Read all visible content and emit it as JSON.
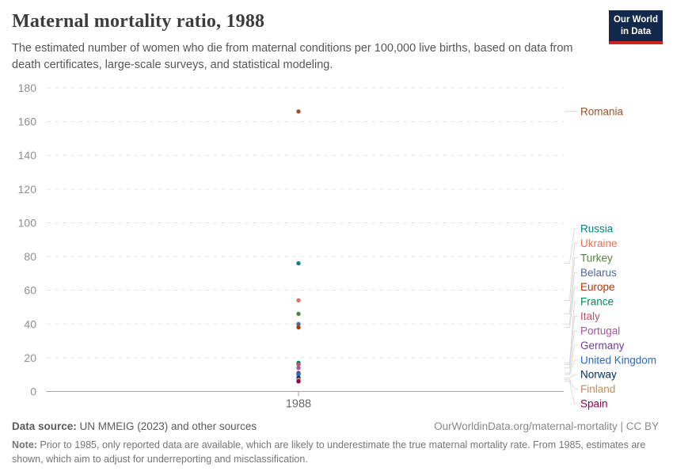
{
  "header": {
    "title": "Maternal mortality ratio, 1988",
    "subtitle": "The estimated number of women who die from maternal conditions per 100,000 live births, based on data from death certificates, large-scale surveys, and statistical modeling.",
    "logo_line1": "Our World",
    "logo_line2": "in Data"
  },
  "chart_data": {
    "type": "scatter",
    "title": "Maternal mortality ratio, 1988",
    "x": [
      1988
    ],
    "x_tick_label": "1988",
    "ylabel": "",
    "ylim": [
      0,
      180
    ],
    "yticks": [
      0,
      20,
      40,
      60,
      80,
      100,
      120,
      140,
      160,
      180
    ],
    "grid": "horizontal-dashed",
    "legend_position": "right",
    "accent_colors": {
      "gridline": "#e3e3e3",
      "axis": "#a1a1a1",
      "connector": "#d9d9d9",
      "tick_text": "#8f8f8f",
      "x_tick_text": "#666666"
    },
    "series": [
      {
        "name": "Romania",
        "value": 166,
        "color": "#9A5129"
      },
      {
        "name": "Russia",
        "value": 76,
        "color": "#00847E"
      },
      {
        "name": "Ukraine",
        "value": 54,
        "color": "#E56E5A"
      },
      {
        "name": "Turkey",
        "value": 46,
        "color": "#578145"
      },
      {
        "name": "Belarus",
        "value": 40,
        "color": "#4C6A9C"
      },
      {
        "name": "Europe",
        "value": 38,
        "color": "#B13507"
      },
      {
        "name": "France",
        "value": 17,
        "color": "#00875E"
      },
      {
        "name": "Italy",
        "value": 16,
        "color": "#C15065"
      },
      {
        "name": "Portugal",
        "value": 14,
        "color": "#A2559C"
      },
      {
        "name": "Germany",
        "value": 11,
        "color": "#6D3E91"
      },
      {
        "name": "United Kingdom",
        "value": 10,
        "color": "#286BBB"
      },
      {
        "name": "Norway",
        "value": 8,
        "color": "#00295B"
      },
      {
        "name": "Finland",
        "value": 7,
        "color": "#BC8E5A"
      },
      {
        "name": "Spain",
        "value": 6,
        "color": "#970046"
      }
    ]
  },
  "footer": {
    "source_label": "Data source:",
    "source_text": " UN MMEIG (2023) and other sources",
    "credit": "OurWorldinData.org/maternal-mortality | CC BY",
    "note_label": "Note:",
    "note_text": " Prior to 1985, only reported data are available, which are likely to underestimate the true maternal mortality rate. From 1985, estimates are shown, which aim to adjust for underreporting and misclassification."
  }
}
